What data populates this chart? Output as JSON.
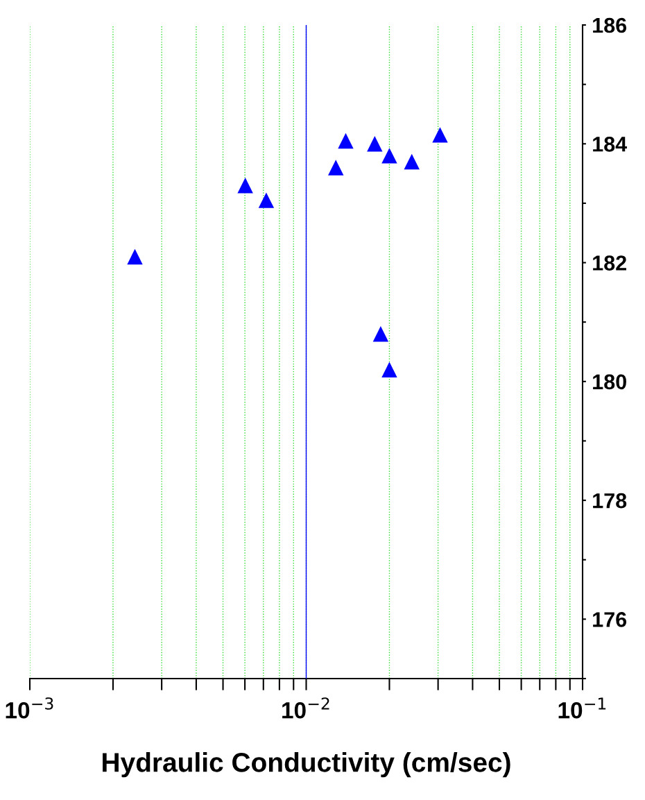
{
  "chart_data": {
    "type": "scatter",
    "xlabel": "Hydraulic Conductivity (cm/sec)",
    "log": "x",
    "x": [
      0.0024,
      0.00602,
      0.00717,
      0.0128,
      0.0139,
      0.0177,
      0.02,
      0.0241,
      0.0305,
      0.0186,
      0.02
    ],
    "series": [
      {
        "color": "#0000ff",
        "values": [
          182.1,
          183.3,
          183.05,
          183.6,
          184.05,
          184.0,
          183.8,
          183.7,
          184.15,
          180.8,
          180.2
        ]
      }
    ],
    "marker": "triangle",
    "grid": "x",
    "xlim": [
      0.001,
      0.1
    ],
    "xticks": [
      {
        "value": 0.001,
        "label": "10$^{−3}$"
      },
      {
        "value": 0.002,
        "label": null
      },
      {
        "value": 0.003,
        "label": null
      },
      {
        "value": 0.004,
        "label": null
      },
      {
        "value": 0.005,
        "label": null
      },
      {
        "value": 0.006,
        "label": null
      },
      {
        "value": 0.007,
        "label": null
      },
      {
        "value": 0.008,
        "label": null
      },
      {
        "value": 0.009,
        "label": null
      },
      {
        "value": 0.01,
        "label": "10$^{−2}$"
      },
      {
        "value": 0.02,
        "label": null
      },
      {
        "value": 0.03,
        "label": null
      },
      {
        "value": 0.04,
        "label": null
      },
      {
        "value": 0.05,
        "label": null
      },
      {
        "value": 0.06,
        "label": null
      },
      {
        "value": 0.07,
        "label": null
      },
      {
        "value": 0.08,
        "label": null
      },
      {
        "value": 0.09,
        "label": null
      },
      {
        "value": 0.1,
        "label": "10$^{−1}$"
      }
    ],
    "ylim": [
      175,
      186
    ],
    "yticks": [
      {
        "value": 175,
        "label": null
      },
      176,
      {
        "value": 177,
        "label": null
      },
      178,
      {
        "value": 179,
        "label": null
      },
      180,
      {
        "value": 181,
        "label": null
      },
      182,
      {
        "value": 183,
        "label": null
      },
      184,
      {
        "value": 185,
        "label": null
      },
      186
    ],
    "ref_lines": [
      {
        "axis": "x",
        "value": 0.01,
        "color": "#0000ff"
      }
    ]
  }
}
